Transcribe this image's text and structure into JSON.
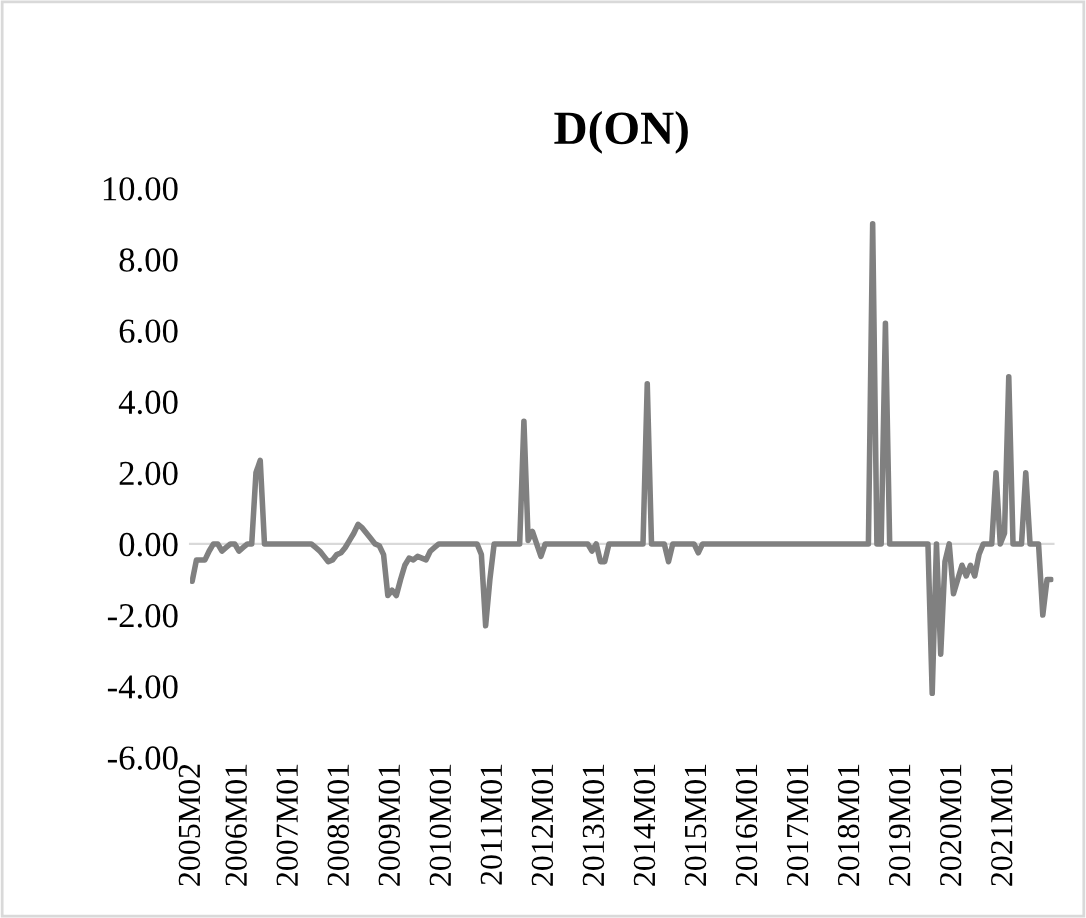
{
  "chart_data": {
    "type": "line",
    "title": "D(ON)",
    "categories": [
      "2005M02",
      null,
      null,
      null,
      null,
      null,
      null,
      null,
      null,
      null,
      null,
      "2006M01",
      null,
      null,
      null,
      null,
      null,
      null,
      null,
      null,
      null,
      null,
      null,
      "2007M01",
      null,
      null,
      null,
      null,
      null,
      null,
      null,
      null,
      null,
      null,
      null,
      "2008M01",
      null,
      null,
      null,
      null,
      null,
      null,
      null,
      null,
      null,
      null,
      null,
      "2009M01",
      null,
      null,
      null,
      null,
      null,
      null,
      null,
      null,
      null,
      null,
      null,
      "2010M01",
      null,
      null,
      null,
      null,
      null,
      null,
      null,
      null,
      null,
      null,
      null,
      "2011M01",
      null,
      null,
      null,
      null,
      null,
      null,
      null,
      null,
      null,
      null,
      null,
      "2012M01",
      null,
      null,
      null,
      null,
      null,
      null,
      null,
      null,
      null,
      null,
      null,
      "2013M01",
      null,
      null,
      null,
      null,
      null,
      null,
      null,
      null,
      null,
      null,
      null,
      "2014M01",
      null,
      null,
      null,
      null,
      null,
      null,
      null,
      null,
      null,
      null,
      null,
      "2015M01",
      null,
      null,
      null,
      null,
      null,
      null,
      null,
      null,
      null,
      null,
      null,
      "2016M01",
      null,
      null,
      null,
      null,
      null,
      null,
      null,
      null,
      null,
      null,
      null,
      "2017M01",
      null,
      null,
      null,
      null,
      null,
      null,
      null,
      null,
      null,
      null,
      null,
      "2018M01",
      null,
      null,
      null,
      null,
      null,
      null,
      null,
      null,
      null,
      null,
      null,
      "2019M01",
      null,
      null,
      null,
      null,
      null,
      null,
      null,
      null,
      null,
      null,
      null,
      "2020M01",
      null,
      null,
      null,
      null,
      null,
      null,
      null,
      null,
      null,
      null,
      null,
      "2021M01",
      null,
      null,
      null,
      null,
      null,
      null,
      null,
      null,
      null,
      null,
      null
    ],
    "series": [
      {
        "color": "#808080",
        "values": [
          -1.05,
          -0.45,
          -0.45,
          -0.45,
          -0.2,
          0,
          0,
          -0.2,
          -0.1,
          0,
          0,
          -0.2,
          -0.1,
          0,
          0,
          2.0,
          2.35,
          0,
          0,
          0,
          0,
          0,
          0,
          0,
          0,
          0,
          0,
          0,
          0,
          -0.1,
          -0.2,
          -0.35,
          -0.5,
          -0.45,
          -0.3,
          -0.25,
          -0.1,
          0.1,
          0.3,
          0.55,
          0.45,
          0.3,
          0.15,
          0,
          -0.05,
          -0.3,
          -1.45,
          -1.3,
          -1.45,
          -1.0,
          -0.6,
          -0.4,
          -0.45,
          -0.35,
          -0.4,
          -0.45,
          -0.2,
          -0.1,
          0,
          0,
          0,
          0,
          0,
          0,
          0,
          0,
          0,
          0,
          -0.3,
          -2.3,
          -1.0,
          0,
          0,
          0,
          0,
          0,
          0,
          0,
          3.45,
          0.1,
          0.35,
          0,
          -0.35,
          0,
          0,
          0,
          0,
          0,
          0,
          0,
          0,
          0,
          0,
          0,
          -0.2,
          0,
          -0.5,
          -0.5,
          0,
          0,
          0,
          0,
          0,
          0,
          0,
          0,
          0,
          4.5,
          0,
          0,
          0,
          0,
          -0.5,
          0,
          0,
          0,
          0,
          0,
          0,
          -0.25,
          0,
          0,
          0,
          0,
          0,
          0,
          0,
          0,
          0,
          0,
          0,
          0,
          0,
          0,
          0,
          0,
          0,
          0,
          0,
          0,
          0,
          0,
          0,
          0,
          0,
          0,
          0,
          0,
          0,
          0,
          0,
          0,
          0,
          0,
          0,
          0,
          0,
          0,
          0,
          0,
          9.0,
          0,
          0,
          6.2,
          0,
          0,
          0,
          0,
          0,
          0,
          0,
          0,
          0,
          0,
          -4.2,
          0,
          -3.1,
          -0.5,
          0,
          -1.4,
          -1.0,
          -0.6,
          -0.9,
          -0.6,
          -0.9,
          -0.3,
          0,
          0,
          0,
          2.0,
          0,
          0.3,
          4.7,
          0,
          0,
          0,
          2.0,
          0,
          0,
          0,
          -2.0,
          -1.0,
          -1.0
        ]
      }
    ],
    "ylim": [
      -6,
      10
    ],
    "yticks": [
      {
        "value": -6,
        "label": "-6.00"
      },
      {
        "value": -4,
        "label": "-4.00"
      },
      {
        "value": -2,
        "label": "-2.00"
      },
      {
        "value": 0,
        "label": "0.00"
      },
      {
        "value": 2,
        "label": "2.00"
      },
      {
        "value": 4,
        "label": "4.00"
      },
      {
        "value": 6,
        "label": "6.00"
      },
      {
        "value": 8,
        "label": "8.00"
      },
      {
        "value": 10,
        "label": "10.00"
      }
    ]
  }
}
